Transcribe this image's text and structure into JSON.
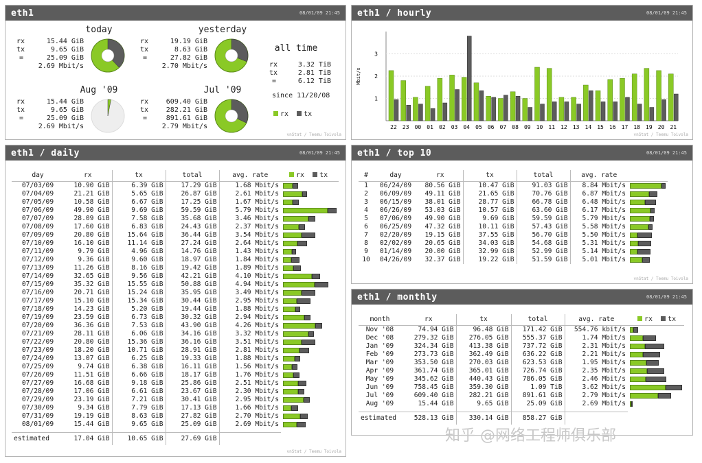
{
  "colors": {
    "rx": "#8ac926",
    "tx": "#5c5c5c",
    "header": "#5c5c5c"
  },
  "credit": "vnStat / Teemu Toivola",
  "watermark": "知乎 @网络工程师俱乐部",
  "summary": {
    "title": "eth1",
    "date": "08/01/09 21:45",
    "today": {
      "label": "today",
      "rx": "15.44 GiB",
      "tx": "9.65 GiB",
      "total": "25.09 GiB",
      "rate": "2.69 Mbit/s",
      "tx_share": 0.38
    },
    "yesterday": {
      "label": "yesterday",
      "rx": "19.19 GiB",
      "tx": "8.63 GiB",
      "total": "27.82 GiB",
      "rate": "2.70 Mbit/s",
      "tx_share": 0.31
    },
    "month": {
      "label": "Aug '09",
      "rx": "15.44 GiB",
      "tx": "9.65 GiB",
      "total": "25.09 GiB",
      "rate": "2.69 Mbit/s",
      "used_share": 0.03
    },
    "prev_month": {
      "label": "Jul '09",
      "rx": "609.40 GiB",
      "tx": "282.21 GiB",
      "total": "891.61 GiB",
      "rate": "2.79 Mbit/s",
      "tx_share": 0.32
    },
    "all_time": {
      "label": "all time",
      "rx": "3.32 TiB",
      "tx": "2.81 TiB",
      "total": "6.12 TiB",
      "since": "since 11/20/08"
    },
    "row_labels": {
      "rx": "rx",
      "tx": "tx",
      "eq": "="
    },
    "legend_rx": "rx",
    "legend_tx": "tx"
  },
  "hourly": {
    "title": "eth1 / hourly",
    "date": "08/01/09 21:45",
    "chart_data": {
      "type": "bar",
      "ylabel": "Mbit/s",
      "ylim": [
        0,
        4
      ],
      "yticks": [
        "1",
        "2",
        "3"
      ],
      "categories": [
        "22",
        "23",
        "00",
        "01",
        "02",
        "03",
        "04",
        "05",
        "06",
        "07",
        "08",
        "09",
        "10",
        "11",
        "12",
        "13",
        "14",
        "15",
        "16",
        "17",
        "18",
        "19",
        "20",
        "21"
      ],
      "series": [
        {
          "name": "rx",
          "values": [
            2.25,
            1.8,
            1.05,
            1.55,
            1.9,
            2.05,
            1.95,
            1.7,
            1.1,
            1.0,
            1.3,
            1.0,
            2.4,
            2.35,
            1.05,
            1.05,
            1.6,
            1.35,
            1.85,
            1.9,
            2.1,
            2.35,
            2.25,
            2.1
          ]
        },
        {
          "name": "tx",
          "values": [
            0.95,
            0.7,
            0.75,
            0.55,
            0.8,
            1.4,
            3.8,
            1.35,
            1.05,
            1.15,
            1.1,
            0.6,
            0.75,
            0.85,
            0.85,
            0.75,
            1.35,
            0.85,
            0.85,
            1.05,
            0.75,
            0.6,
            0.95,
            1.2
          ]
        }
      ]
    }
  },
  "daily": {
    "title": "eth1 / daily",
    "date": "08/01/09 21:45",
    "headers": {
      "day": "day",
      "rx": "rx",
      "tx": "tx",
      "total": "total",
      "rate": "avg. rate"
    },
    "legend_rx": "rx",
    "legend_tx": "tx",
    "rows": [
      {
        "day": "07/03/09",
        "rx": "10.90 GiB",
        "tx": "6.39 GiB",
        "total": "17.29 GiB",
        "rate": "1.68 Mbit/s",
        "rxv": 10.9,
        "txv": 6.39
      },
      {
        "day": "07/04/09",
        "rx": "21.21 GiB",
        "tx": "5.65 GiB",
        "total": "26.87 GiB",
        "rate": "2.61 Mbit/s",
        "rxv": 21.21,
        "txv": 5.65
      },
      {
        "day": "07/05/09",
        "rx": "10.58 GiB",
        "tx": "6.67 GiB",
        "total": "17.25 GiB",
        "rate": "1.67 Mbit/s",
        "rxv": 10.58,
        "txv": 6.67
      },
      {
        "day": "07/06/09",
        "rx": "49.90 GiB",
        "tx": "9.69 GiB",
        "total": "59.59 GiB",
        "rate": "5.79 Mbit/s",
        "rxv": 49.9,
        "txv": 9.69
      },
      {
        "day": "07/07/09",
        "rx": "28.09 GiB",
        "tx": "7.58 GiB",
        "total": "35.68 GiB",
        "rate": "3.46 Mbit/s",
        "rxv": 28.09,
        "txv": 7.58
      },
      {
        "day": "07/08/09",
        "rx": "17.60 GiB",
        "tx": "6.83 GiB",
        "total": "24.43 GiB",
        "rate": "2.37 Mbit/s",
        "rxv": 17.6,
        "txv": 6.83
      },
      {
        "day": "07/09/09",
        "rx": "20.80 GiB",
        "tx": "15.64 GiB",
        "total": "36.44 GiB",
        "rate": "3.54 Mbit/s",
        "rxv": 20.8,
        "txv": 15.64
      },
      {
        "day": "07/10/09",
        "rx": "16.10 GiB",
        "tx": "11.14 GiB",
        "total": "27.24 GiB",
        "rate": "2.64 Mbit/s",
        "rxv": 16.1,
        "txv": 11.14
      },
      {
        "day": "07/11/09",
        "rx": "9.79 GiB",
        "tx": "4.96 GiB",
        "total": "14.76 GiB",
        "rate": "1.43 Mbit/s",
        "rxv": 9.79,
        "txv": 4.96
      },
      {
        "day": "07/12/09",
        "rx": "9.36 GiB",
        "tx": "9.60 GiB",
        "total": "18.97 GiB",
        "rate": "1.84 Mbit/s",
        "rxv": 9.36,
        "txv": 9.6
      },
      {
        "day": "07/13/09",
        "rx": "11.26 GiB",
        "tx": "8.16 GiB",
        "total": "19.42 GiB",
        "rate": "1.89 Mbit/s",
        "rxv": 11.26,
        "txv": 8.16
      },
      {
        "day": "07/14/09",
        "rx": "32.65 GiB",
        "tx": "9.56 GiB",
        "total": "42.21 GiB",
        "rate": "4.10 Mbit/s",
        "rxv": 32.65,
        "txv": 9.56
      },
      {
        "day": "07/15/09",
        "rx": "35.32 GiB",
        "tx": "15.55 GiB",
        "total": "50.88 GiB",
        "rate": "4.94 Mbit/s",
        "rxv": 35.32,
        "txv": 15.55
      },
      {
        "day": "07/16/09",
        "rx": "20.71 GiB",
        "tx": "15.24 GiB",
        "total": "35.95 GiB",
        "rate": "3.49 Mbit/s",
        "rxv": 20.71,
        "txv": 15.24
      },
      {
        "day": "07/17/09",
        "rx": "15.10 GiB",
        "tx": "15.34 GiB",
        "total": "30.44 GiB",
        "rate": "2.95 Mbit/s",
        "rxv": 15.1,
        "txv": 15.34
      },
      {
        "day": "07/18/09",
        "rx": "14.23 GiB",
        "tx": "5.20 GiB",
        "total": "19.44 GiB",
        "rate": "1.88 Mbit/s",
        "rxv": 14.23,
        "txv": 5.2
      },
      {
        "day": "07/19/09",
        "rx": "23.59 GiB",
        "tx": "6.73 GiB",
        "total": "30.32 GiB",
        "rate": "2.94 Mbit/s",
        "rxv": 23.59,
        "txv": 6.73
      },
      {
        "day": "07/20/09",
        "rx": "36.36 GiB",
        "tx": "7.53 GiB",
        "total": "43.90 GiB",
        "rate": "4.26 Mbit/s",
        "rxv": 36.36,
        "txv": 7.53
      },
      {
        "day": "07/21/09",
        "rx": "28.11 GiB",
        "tx": "6.06 GiB",
        "total": "34.16 GiB",
        "rate": "3.32 Mbit/s",
        "rxv": 28.11,
        "txv": 6.06
      },
      {
        "day": "07/22/09",
        "rx": "20.80 GiB",
        "tx": "15.36 GiB",
        "total": "36.16 GiB",
        "rate": "3.51 Mbit/s",
        "rxv": 20.8,
        "txv": 15.36
      },
      {
        "day": "07/23/09",
        "rx": "18.20 GiB",
        "tx": "10.71 GiB",
        "total": "28.91 GiB",
        "rate": "2.81 Mbit/s",
        "rxv": 18.2,
        "txv": 10.71
      },
      {
        "day": "07/24/09",
        "rx": "13.07 GiB",
        "tx": "6.25 GiB",
        "total": "19.33 GiB",
        "rate": "1.88 Mbit/s",
        "rxv": 13.07,
        "txv": 6.25
      },
      {
        "day": "07/25/09",
        "rx": "9.74 GiB",
        "tx": "6.38 GiB",
        "total": "16.11 GiB",
        "rate": "1.56 Mbit/s",
        "rxv": 9.74,
        "txv": 6.38
      },
      {
        "day": "07/26/09",
        "rx": "11.51 GiB",
        "tx": "6.66 GiB",
        "total": "18.17 GiB",
        "rate": "1.76 Mbit/s",
        "rxv": 11.51,
        "txv": 6.66
      },
      {
        "day": "07/27/09",
        "rx": "16.68 GiB",
        "tx": "9.18 GiB",
        "total": "25.86 GiB",
        "rate": "2.51 Mbit/s",
        "rxv": 16.68,
        "txv": 9.18
      },
      {
        "day": "07/28/09",
        "rx": "17.06 GiB",
        "tx": "6.61 GiB",
        "total": "23.67 GiB",
        "rate": "2.30 Mbit/s",
        "rxv": 17.06,
        "txv": 6.61
      },
      {
        "day": "07/29/09",
        "rx": "23.19 GiB",
        "tx": "7.21 GiB",
        "total": "30.41 GiB",
        "rate": "2.95 Mbit/s",
        "rxv": 23.19,
        "txv": 7.21
      },
      {
        "day": "07/30/09",
        "rx": "9.34 GiB",
        "tx": "7.79 GiB",
        "total": "17.13 GiB",
        "rate": "1.66 Mbit/s",
        "rxv": 9.34,
        "txv": 7.79
      },
      {
        "day": "07/31/09",
        "rx": "19.19 GiB",
        "tx": "8.63 GiB",
        "total": "27.82 GiB",
        "rate": "2.70 Mbit/s",
        "rxv": 19.19,
        "txv": 8.63
      },
      {
        "day": "08/01/09",
        "rx": "15.44 GiB",
        "tx": "9.65 GiB",
        "total": "25.09 GiB",
        "rate": "2.69 Mbit/s",
        "rxv": 15.44,
        "txv": 9.65
      }
    ],
    "estimated": {
      "label": "estimated",
      "rx": "17.04 GiB",
      "tx": "10.65 GiB",
      "total": "27.69 GiB"
    }
  },
  "top10": {
    "title": "eth1 / top 10",
    "date": "08/01/09 21:45",
    "headers": {
      "num": "#",
      "day": "day",
      "rx": "rx",
      "tx": "tx",
      "total": "total",
      "rate": "avg. rate"
    },
    "rows": [
      {
        "n": "1",
        "day": "06/24/09",
        "rx": "80.56 GiB",
        "tx": "10.47 GiB",
        "total": "91.03 GiB",
        "rate": "8.84 Mbit/s",
        "rxv": 80.56,
        "txv": 10.47
      },
      {
        "n": "2",
        "day": "06/09/09",
        "rx": "49.11 GiB",
        "tx": "21.65 GiB",
        "total": "70.76 GiB",
        "rate": "6.87 Mbit/s",
        "rxv": 49.11,
        "txv": 21.65
      },
      {
        "n": "3",
        "day": "06/15/09",
        "rx": "38.01 GiB",
        "tx": "28.77 GiB",
        "total": "66.78 GiB",
        "rate": "6.48 Mbit/s",
        "rxv": 38.01,
        "txv": 28.77
      },
      {
        "n": "4",
        "day": "06/26/09",
        "rx": "53.03 GiB",
        "tx": "10.57 GiB",
        "total": "63.60 GiB",
        "rate": "6.17 Mbit/s",
        "rxv": 53.03,
        "txv": 10.57
      },
      {
        "n": "5",
        "day": "07/06/09",
        "rx": "49.90 GiB",
        "tx": "9.69 GiB",
        "total": "59.59 GiB",
        "rate": "5.79 Mbit/s",
        "rxv": 49.9,
        "txv": 9.69
      },
      {
        "n": "6",
        "day": "06/25/09",
        "rx": "47.32 GiB",
        "tx": "10.11 GiB",
        "total": "57.43 GiB",
        "rate": "5.58 Mbit/s",
        "rxv": 47.32,
        "txv": 10.11
      },
      {
        "n": "7",
        "day": "02/20/09",
        "rx": "19.15 GiB",
        "tx": "37.55 GiB",
        "total": "56.70 GiB",
        "rate": "5.50 Mbit/s",
        "rxv": 19.15,
        "txv": 37.55
      },
      {
        "n": "8",
        "day": "02/02/09",
        "rx": "20.65 GiB",
        "tx": "34.03 GiB",
        "total": "54.68 GiB",
        "rate": "5.31 Mbit/s",
        "rxv": 20.65,
        "txv": 34.03
      },
      {
        "n": "9",
        "day": "01/14/09",
        "rx": "20.00 GiB",
        "tx": "32.99 GiB",
        "total": "52.99 GiB",
        "rate": "5.14 Mbit/s",
        "rxv": 20.0,
        "txv": 32.99
      },
      {
        "n": "10",
        "day": "04/26/09",
        "rx": "32.37 GiB",
        "tx": "19.22 GiB",
        "total": "51.59 GiB",
        "rate": "5.01 Mbit/s",
        "rxv": 32.37,
        "txv": 19.22
      }
    ]
  },
  "monthly": {
    "title": "eth1 / monthly",
    "date": "08/01/09 21:45",
    "headers": {
      "month": "month",
      "rx": "rx",
      "tx": "tx",
      "total": "total",
      "rate": "avg. rate"
    },
    "legend_rx": "rx",
    "legend_tx": "tx",
    "rows": [
      {
        "month": "Nov '08",
        "rx": "74.94 GiB",
        "tx": "96.48 GiB",
        "total": "171.42 GiB",
        "rate": "554.76 kbit/s",
        "rxv": 74.94,
        "txv": 96.48
      },
      {
        "month": "Dec '08",
        "rx": "279.32 GiB",
        "tx": "276.05 GiB",
        "total": "555.37 GiB",
        "rate": "1.74 Mbit/s",
        "rxv": 279.32,
        "txv": 276.05
      },
      {
        "month": "Jan '09",
        "rx": "324.34 GiB",
        "tx": "413.38 GiB",
        "total": "737.72 GiB",
        "rate": "2.31 Mbit/s",
        "rxv": 324.34,
        "txv": 413.38
      },
      {
        "month": "Feb '09",
        "rx": "273.73 GiB",
        "tx": "362.49 GiB",
        "total": "636.22 GiB",
        "rate": "2.21 Mbit/s",
        "rxv": 273.73,
        "txv": 362.49
      },
      {
        "month": "Mar '09",
        "rx": "353.50 GiB",
        "tx": "270.03 GiB",
        "total": "623.53 GiB",
        "rate": "1.95 Mbit/s",
        "rxv": 353.5,
        "txv": 270.03
      },
      {
        "month": "Apr '09",
        "rx": "361.74 GiB",
        "tx": "365.01 GiB",
        "total": "726.74 GiB",
        "rate": "2.35 Mbit/s",
        "rxv": 361.74,
        "txv": 365.01
      },
      {
        "month": "May '09",
        "rx": "345.62 GiB",
        "tx": "440.43 GiB",
        "total": "786.05 GiB",
        "rate": "2.46 Mbit/s",
        "rxv": 345.62,
        "txv": 440.43
      },
      {
        "month": "Jun '09",
        "rx": "758.45 GiB",
        "tx": "359.30 GiB",
        "total": "1.09 TiB",
        "rate": "3.62 Mbit/s",
        "rxv": 758.45,
        "txv": 359.3
      },
      {
        "month": "Jul '09",
        "rx": "609.40 GiB",
        "tx": "282.21 GiB",
        "total": "891.61 GiB",
        "rate": "2.79 Mbit/s",
        "rxv": 609.4,
        "txv": 282.21
      },
      {
        "month": "Aug '09",
        "rx": "15.44 GiB",
        "tx": "9.65 GiB",
        "total": "25.09 GiB",
        "rate": "2.69 Mbit/s",
        "rxv": 15.44,
        "txv": 9.65
      }
    ],
    "estimated": {
      "label": "estimated",
      "rx": "528.13 GiB",
      "tx": "330.14 GiB",
      "total": "858.27 GiB"
    }
  }
}
